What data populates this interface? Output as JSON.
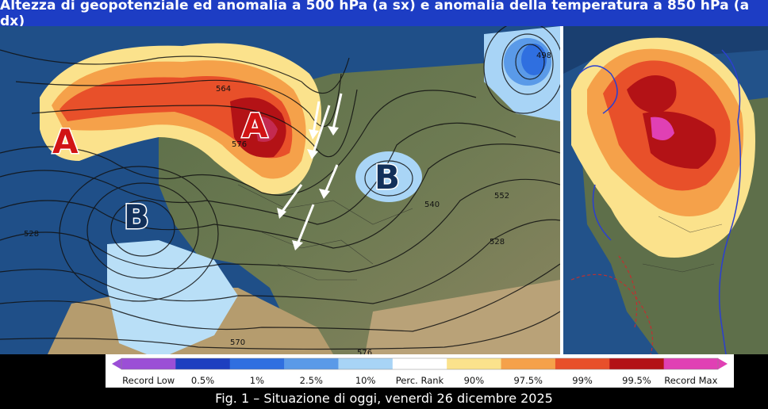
{
  "title": "Altezza di geopotenziale ed anomalia a 500 hPa (a sx) e anomalia della temperatura a 850 hPa (a dx)",
  "caption": "Fig. 1 – Situazione di oggi, venerdì 26 dicembre 2025",
  "pressure_labels": {
    "high_1": "A",
    "high_2": "A",
    "low_1": "B",
    "low_2": "B"
  },
  "contour_labels": [
    "564",
    "576",
    "552",
    "540",
    "528",
    "570",
    "576",
    "498",
    "528"
  ],
  "legend": {
    "items": [
      "Record Low",
      "0.5%",
      "1%",
      "2.5%",
      "10%",
      "Perc. Rank",
      "90%",
      "97.5%",
      "99%",
      "99.5%",
      "Record Max"
    ],
    "colors": [
      "#9b4fd6",
      "#1d3fc0",
      "#2f6fe0",
      "#5a9ae8",
      "#a8d4f6",
      "#ffffff",
      "#fbe28c",
      "#f5a14a",
      "#e8502a",
      "#b31216",
      "#e040b4"
    ]
  }
}
